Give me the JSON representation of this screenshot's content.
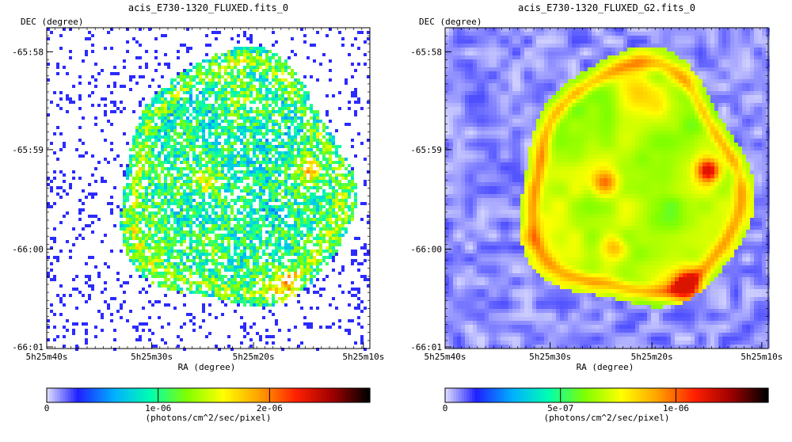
{
  "chart_data": [
    {
      "type": "heatmap",
      "title": "acis_E730-1320_FLUXED.fits_0",
      "xlabel": "RA (degree)",
      "ylabel": "DEC (degree)",
      "x_ticks": [
        "5h25m40s",
        "5h25m30s",
        "5h25m20s",
        "5h25m10s"
      ],
      "y_ticks": [
        "-65:58",
        "-65:59",
        "-66:00",
        "-66:01"
      ],
      "colorbar": {
        "label": "(photons/cm^2/sec/pixel)",
        "ticks": [
          {
            "value": 0,
            "label": "0"
          },
          {
            "value": 1e-06,
            "label": "1e-06"
          },
          {
            "value": 2e-06,
            "label": "2e-06"
          }
        ],
        "range": [
          0,
          2.9e-06
        ]
      },
      "style": "binned-noisy"
    },
    {
      "type": "heatmap",
      "title": "acis_E730-1320_FLUXED_G2.fits_0",
      "xlabel": "RA (degree)",
      "ylabel": "DEC (degree)",
      "x_ticks": [
        "5h25m40s",
        "5h25m30s",
        "5h25m20s",
        "5h25m10s"
      ],
      "y_ticks": [
        "-65:58",
        "-65:59",
        "-66:00",
        "-66:01"
      ],
      "colorbar": {
        "label": "(photons/cm^2/sec/pixel)",
        "ticks": [
          {
            "value": 0,
            "label": "0"
          },
          {
            "value": 5e-07,
            "label": "5e-07"
          },
          {
            "value": 1e-06,
            "label": "1e-06"
          }
        ],
        "range": [
          0,
          1.4e-06
        ]
      },
      "style": "smoothed"
    }
  ],
  "colormap": [
    "#ffffff",
    "#2020ff",
    "#00b0ff",
    "#00ffb0",
    "#80ff00",
    "#ffff00",
    "#ffa000",
    "#ff2000",
    "#a00000",
    "#000000"
  ]
}
